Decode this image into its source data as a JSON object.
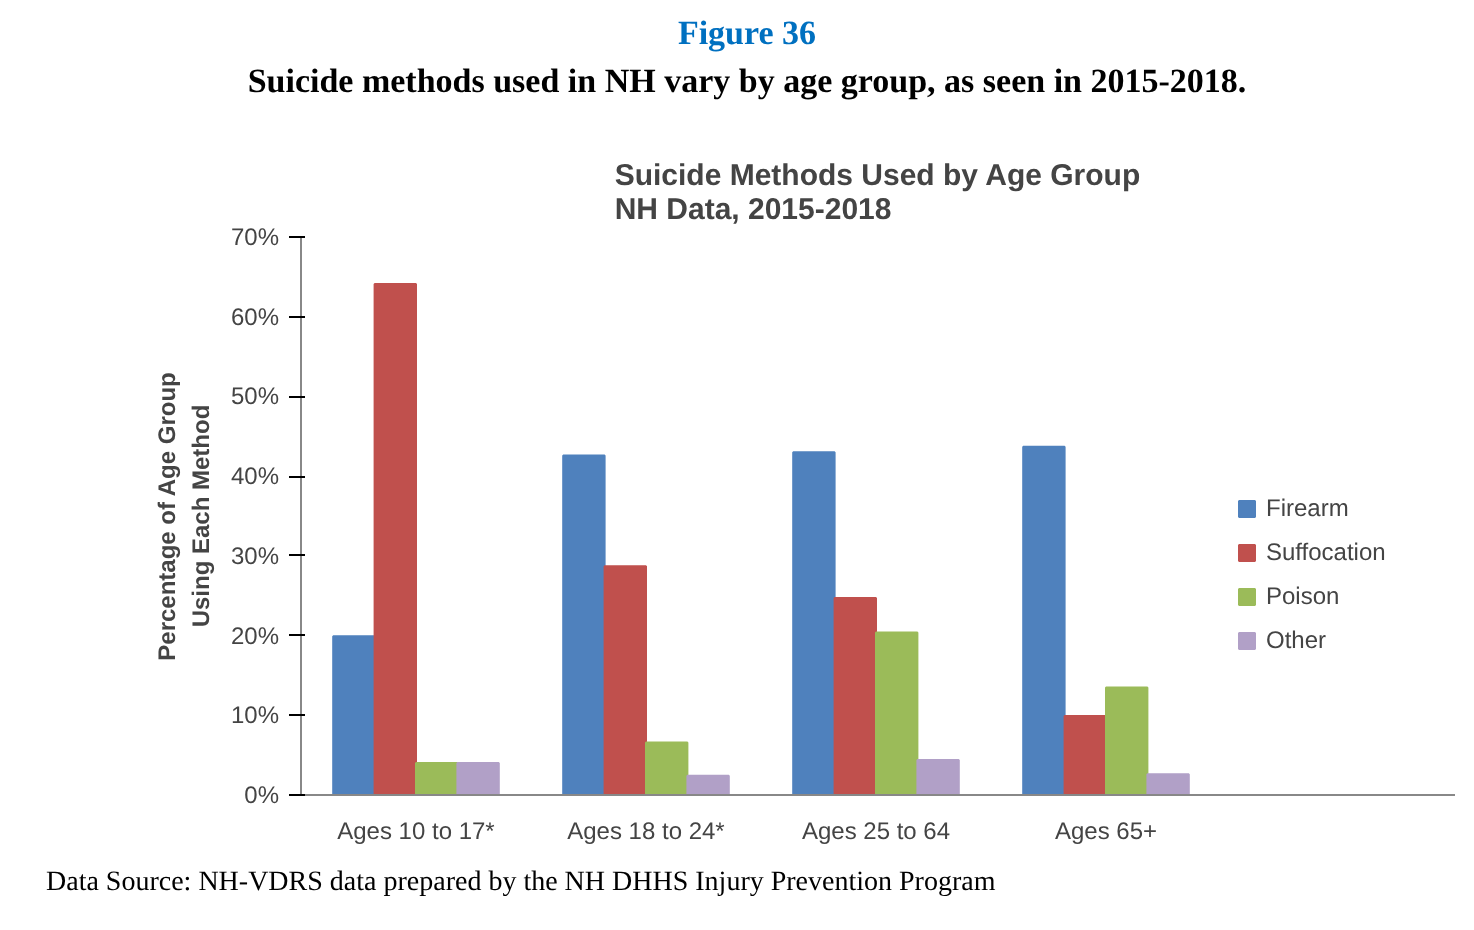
{
  "chart_data": {
    "type": "bar",
    "title": "Figure 36",
    "subtitle": "Suicide methods used in NH vary by age group, as seen in 2015-2018.",
    "annotations": [
      "Suicide Methods Used by Age Group\nNH Data, 2015-2018",
      "Data Source: NH-VDRS data prepared by the NH DHHS Injury Prevention Program"
    ],
    "ylabel": "Percentage of Age Group\nUsing Each Method",
    "categories": [
      "Ages 10 to 17*",
      "Ages 18 to 24*",
      "Ages 25 to 64",
      "Ages 65+"
    ],
    "series": [
      {
        "name": "Firearm",
        "color": "#4f81bd",
        "values": [
          19.9,
          42.6,
          43.0,
          43.7
        ]
      },
      {
        "name": "Suffocation",
        "color": "#c0504d",
        "values": [
          64.1,
          28.7,
          24.7,
          9.9
        ]
      },
      {
        "name": "Poison",
        "color": "#9bbb59",
        "values": [
          4.0,
          6.6,
          20.4,
          13.5
        ]
      },
      {
        "name": "Other",
        "color": "#b1a0c7",
        "values": [
          4.0,
          2.4,
          4.4,
          2.6
        ]
      }
    ],
    "ylim": [
      0,
      70
    ],
    "yticks": [
      {
        "value": 0,
        "label": "0%"
      },
      {
        "value": 10,
        "label": "10%"
      },
      {
        "value": 20,
        "label": "20%"
      },
      {
        "value": 30,
        "label": "30%"
      },
      {
        "value": 40,
        "label": "40%"
      },
      {
        "value": 50,
        "label": "50%"
      },
      {
        "value": 60,
        "label": "60%"
      },
      {
        "value": 70,
        "label": "70%"
      }
    ],
    "grid": false,
    "legend": "right"
  }
}
